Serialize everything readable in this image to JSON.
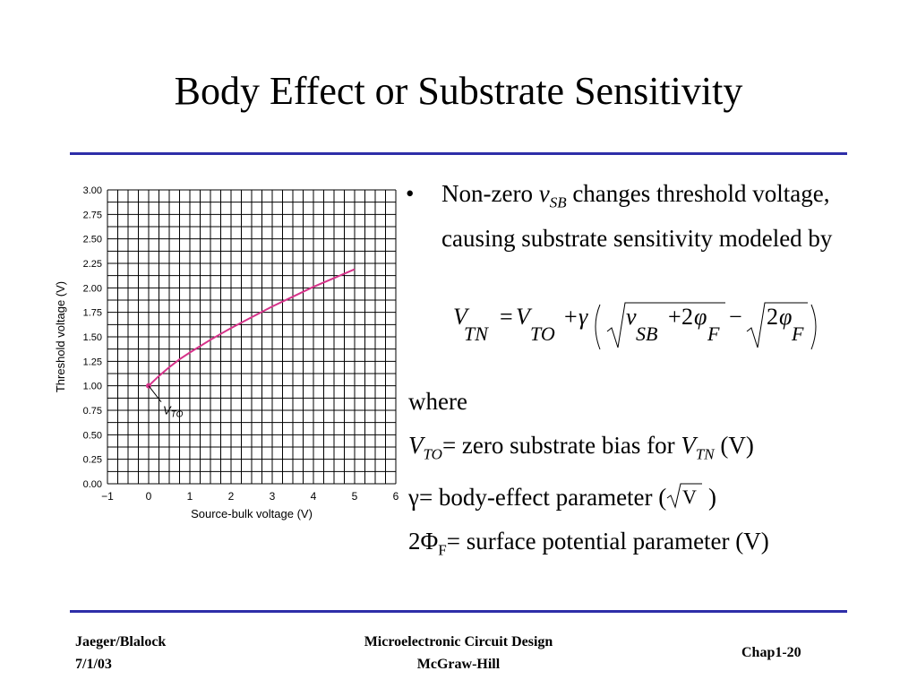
{
  "slide": {
    "title": "Body Effect or Substrate Sensitivity",
    "bullet": {
      "prefix": "Non-zero ",
      "var": "v",
      "var_sub": "SB",
      "suffix": " changes threshold voltage, causing substrate sensitivity modeled by"
    },
    "formula": {
      "lhs": "V",
      "lhs_sub": "TN",
      "vto": "V",
      "vto_sub": "TO",
      "gamma": "γ",
      "vsb": "v",
      "vsb_sub": "SB",
      "two": "2",
      "phi": "φ",
      "phi_sub": "F",
      "eq": "=",
      "plus": "+",
      "minus": "−"
    },
    "where": "where",
    "defs": {
      "vto_label": "V",
      "vto_sub": "TO",
      "vto_text": "= zero substrate bias for ",
      "vtn_label": "V",
      "vtn_sub": "TN",
      "vto_unit": " (V)",
      "gamma_label": "γ",
      "gamma_text": "= body-effect parameter (",
      "gamma_unit_root": "V",
      "gamma_close": " )",
      "phi_label": "2Φ",
      "phi_sub": "F",
      "phi_text": "= surface potential parameter (V)"
    }
  },
  "footer": {
    "left_line1": "Jaeger/Blalock",
    "left_line2": "7/1/03",
    "center_line1": "Microelectronic Circuit Design",
    "center_line2": "McGraw-Hill",
    "right": "Chap1-20"
  },
  "colors": {
    "rule": "#2e2ea8",
    "curve": "#d6338a",
    "grid": "#000000"
  },
  "chart_data": {
    "type": "line",
    "xlabel": "Source-bulk voltage (V)",
    "ylabel": "Threshold voltage (V)",
    "xlim": [
      -1,
      6
    ],
    "ylim": [
      0,
      3
    ],
    "x_ticks": [
      "−1",
      "0",
      "1",
      "2",
      "3",
      "4",
      "5",
      "6"
    ],
    "y_ticks": [
      "0.00",
      "0.25",
      "0.50",
      "0.75",
      "1.00",
      "1.25",
      "1.50",
      "1.75",
      "2.00",
      "2.25",
      "2.50",
      "2.75",
      "3.00"
    ],
    "grid": true,
    "annotation": {
      "text": "V",
      "sub": "TO",
      "x": 0,
      "y": 1.0
    },
    "series": [
      {
        "x": [
          0,
          0.25,
          0.5,
          0.75,
          1,
          1.5,
          2,
          2.5,
          3,
          3.5,
          4,
          4.5,
          5
        ],
        "y": [
          1.0,
          1.1,
          1.19,
          1.27,
          1.34,
          1.47,
          1.59,
          1.7,
          1.81,
          1.91,
          2.01,
          2.1,
          2.19
        ]
      }
    ]
  }
}
